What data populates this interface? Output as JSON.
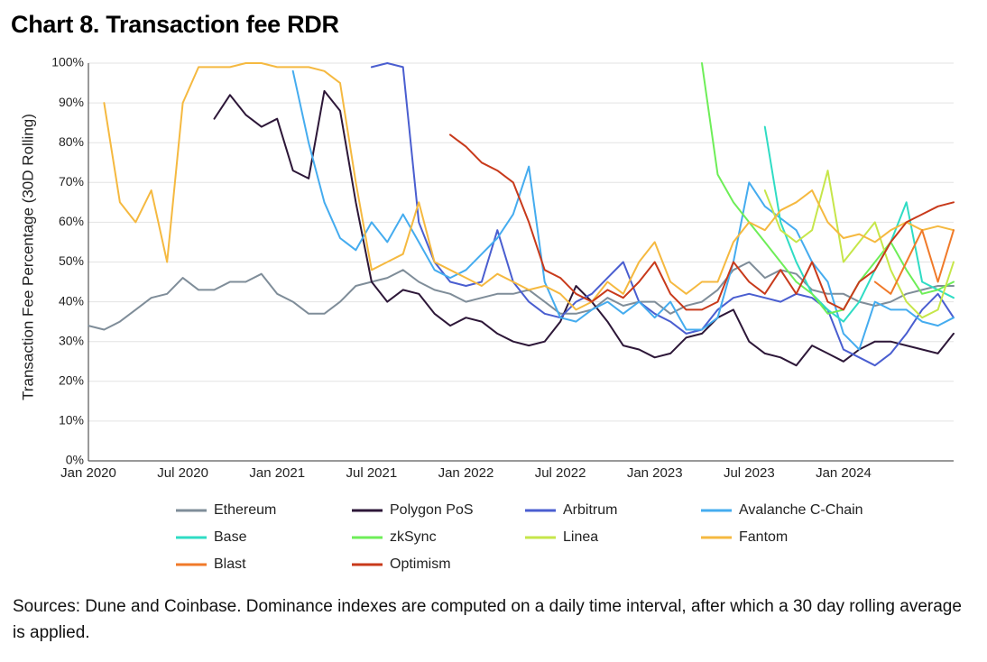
{
  "chart_data": {
    "type": "line",
    "title": "Chart 8. Transaction fee RDR",
    "y_label": "Transaction Fee Percentage (30D Rolling)",
    "note": "Sources: Dune and Coinbase. Dominance indexes are computed on a daily time interval, after which a 30 day rolling average is applied.",
    "categories": [
      "Jan 2020",
      null,
      null,
      null,
      null,
      null,
      "Jul 2020",
      null,
      null,
      null,
      null,
      null,
      "Jan 2021",
      null,
      null,
      null,
      null,
      null,
      "Jul 2021",
      null,
      null,
      null,
      null,
      null,
      "Jan 2022",
      null,
      null,
      null,
      null,
      null,
      "Jul 2022",
      null,
      null,
      null,
      null,
      null,
      "Jan 2023",
      null,
      null,
      null,
      null,
      null,
      "Jul 2023",
      null,
      null,
      null,
      null,
      null,
      "Jan 2024",
      null,
      null,
      null,
      null,
      null,
      null,
      null
    ],
    "ylim": [
      0,
      100
    ],
    "yticks": [
      {
        "value": 0,
        "label": "0%"
      },
      {
        "value": 10,
        "label": "10%"
      },
      {
        "value": 20,
        "label": "20%"
      },
      {
        "value": 30,
        "label": "30%"
      },
      {
        "value": 40,
        "label": "40%"
      },
      {
        "value": 50,
        "label": "50%"
      },
      {
        "value": 60,
        "label": "60%"
      },
      {
        "value": 70,
        "label": "70%"
      },
      {
        "value": 80,
        "label": "80%"
      },
      {
        "value": 90,
        "label": "90%"
      },
      {
        "value": 100,
        "label": "100%"
      }
    ],
    "grid": true,
    "legend": "bottom",
    "series": [
      {
        "name": "Ethereum",
        "color": "#7f8d99",
        "values": [
          34,
          33,
          35,
          38,
          41,
          42,
          46,
          43,
          43,
          45,
          45,
          47,
          42,
          40,
          37,
          37,
          40,
          44,
          45,
          46,
          48,
          45,
          43,
          42,
          40,
          41,
          42,
          42,
          43,
          40,
          37,
          37,
          38,
          41,
          39,
          40,
          40,
          37,
          39,
          40,
          43,
          48,
          50,
          46,
          48,
          47,
          43,
          42,
          42,
          40,
          39,
          40,
          42,
          43,
          44,
          44
        ]
      },
      {
        "name": "Polygon PoS",
        "color": "#2d1738",
        "values": [
          null,
          null,
          null,
          null,
          null,
          null,
          null,
          null,
          86,
          92,
          87,
          84,
          86,
          73,
          71,
          93,
          88,
          65,
          45,
          40,
          43,
          42,
          37,
          34,
          36,
          35,
          32,
          30,
          29,
          30,
          35,
          44,
          40,
          35,
          29,
          28,
          26,
          27,
          31,
          32,
          36,
          38,
          30,
          27,
          26,
          24,
          29,
          27,
          25,
          28,
          30,
          30,
          29,
          28,
          27,
          32
        ]
      },
      {
        "name": "Arbitrum",
        "color": "#4a5ed0",
        "values": [
          null,
          null,
          null,
          null,
          null,
          null,
          null,
          null,
          null,
          null,
          null,
          null,
          null,
          null,
          null,
          null,
          null,
          null,
          99,
          100,
          99,
          60,
          50,
          45,
          44,
          45,
          58,
          45,
          40,
          37,
          36,
          40,
          42,
          46,
          50,
          40,
          37,
          35,
          32,
          33,
          38,
          41,
          42,
          41,
          40,
          42,
          41,
          38,
          28,
          26,
          24,
          27,
          32,
          38,
          42,
          36
        ]
      },
      {
        "name": "Avalanche C-Chain",
        "color": "#45acef",
        "values": [
          null,
          null,
          null,
          null,
          null,
          null,
          null,
          null,
          null,
          null,
          null,
          null,
          null,
          98,
          80,
          65,
          56,
          53,
          60,
          55,
          62,
          55,
          48,
          46,
          48,
          52,
          56,
          62,
          74,
          45,
          36,
          35,
          38,
          40,
          37,
          40,
          36,
          40,
          33,
          33,
          36,
          50,
          70,
          64,
          61,
          58,
          50,
          45,
          32,
          28,
          40,
          38,
          38,
          35,
          34,
          36
        ]
      },
      {
        "name": "Base",
        "color": "#2fdcc4",
        "values": [
          null,
          null,
          null,
          null,
          null,
          null,
          null,
          null,
          null,
          null,
          null,
          null,
          null,
          null,
          null,
          null,
          null,
          null,
          null,
          null,
          null,
          null,
          null,
          null,
          null,
          null,
          null,
          null,
          null,
          null,
          null,
          null,
          null,
          null,
          null,
          null,
          null,
          null,
          null,
          null,
          null,
          null,
          null,
          84,
          60,
          50,
          42,
          38,
          35,
          40,
          48,
          55,
          65,
          45,
          43,
          41
        ]
      },
      {
        "name": "zkSync",
        "color": "#6eee58",
        "values": [
          null,
          null,
          null,
          null,
          null,
          null,
          null,
          null,
          null,
          null,
          null,
          null,
          null,
          null,
          null,
          null,
          null,
          null,
          null,
          null,
          null,
          null,
          null,
          null,
          null,
          null,
          null,
          null,
          null,
          null,
          null,
          null,
          null,
          null,
          null,
          null,
          null,
          null,
          null,
          100,
          72,
          65,
          60,
          55,
          50,
          45,
          42,
          37,
          38,
          45,
          50,
          55,
          48,
          42,
          43,
          45
        ]
      },
      {
        "name": "Linea",
        "color": "#c6e64a",
        "values": [
          null,
          null,
          null,
          null,
          null,
          null,
          null,
          null,
          null,
          null,
          null,
          null,
          null,
          null,
          null,
          null,
          null,
          null,
          null,
          null,
          null,
          null,
          null,
          null,
          null,
          null,
          null,
          null,
          null,
          null,
          null,
          null,
          null,
          null,
          null,
          null,
          null,
          null,
          null,
          null,
          null,
          null,
          null,
          68,
          58,
          55,
          58,
          73,
          50,
          55,
          60,
          48,
          40,
          36,
          38,
          50
        ]
      },
      {
        "name": "Fantom",
        "color": "#f5b940",
        "values": [
          null,
          90,
          65,
          60,
          68,
          50,
          90,
          99,
          99,
          99,
          100,
          100,
          99,
          99,
          99,
          98,
          95,
          70,
          48,
          50,
          52,
          65,
          50,
          48,
          46,
          44,
          47,
          45,
          43,
          44,
          42,
          38,
          40,
          45,
          42,
          50,
          55,
          45,
          42,
          45,
          45,
          55,
          60,
          58,
          63,
          65,
          68,
          60,
          56,
          57,
          55,
          58,
          60,
          58,
          59,
          58
        ]
      },
      {
        "name": "Blast",
        "color": "#f07a2a",
        "values": [
          null,
          null,
          null,
          null,
          null,
          null,
          null,
          null,
          null,
          null,
          null,
          null,
          null,
          null,
          null,
          null,
          null,
          null,
          null,
          null,
          null,
          null,
          null,
          null,
          null,
          null,
          null,
          null,
          null,
          null,
          null,
          null,
          null,
          null,
          null,
          null,
          null,
          null,
          null,
          null,
          null,
          null,
          null,
          null,
          null,
          null,
          null,
          null,
          null,
          null,
          45,
          42,
          50,
          58,
          45,
          58
        ]
      },
      {
        "name": "Optimism",
        "color": "#c83a1b",
        "values": [
          null,
          null,
          null,
          null,
          null,
          null,
          null,
          null,
          null,
          null,
          null,
          null,
          null,
          null,
          null,
          null,
          null,
          null,
          null,
          null,
          null,
          null,
          null,
          82,
          79,
          75,
          73,
          70,
          60,
          48,
          46,
          42,
          40,
          43,
          41,
          45,
          50,
          42,
          38,
          38,
          40,
          50,
          45,
          42,
          48,
          42,
          50,
          40,
          38,
          45,
          48,
          55,
          60,
          62,
          64,
          65
        ]
      }
    ]
  }
}
